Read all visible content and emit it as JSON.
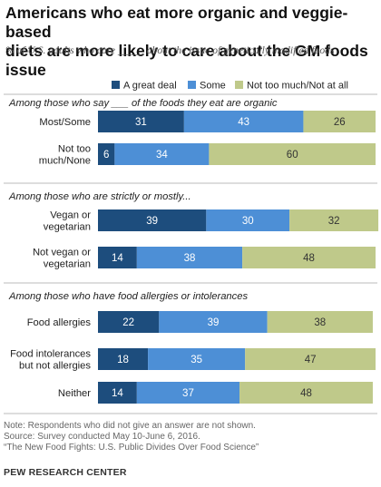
{
  "title_line1": "Americans who eat more organic and veggie-based",
  "title_line2": "diets are more likely to care about the GM foods issue",
  "subtitle": "% of U.S. adults who care _____ about the issue of genetically modified foods",
  "note_line1": "Note: Respondents who did not give an answer are not shown.",
  "note_line2": "Source: Survey conducted May 10-June 6, 2016.",
  "note_line3": "“The New Food Fights: U.S. Public Divides Over Food Science”",
  "source_org": "PEW RESEARCH CENTER",
  "colors": {
    "great_deal": "#1d4d7d",
    "some": "#4d8fd6",
    "not_too_much": "#bfc98a",
    "separator": "#bbbbbb"
  },
  "chart_data": {
    "type": "bar",
    "orientation": "horizontal",
    "stacked": true,
    "xlim": [
      0,
      100
    ],
    "legend_position": "top",
    "series": [
      {
        "name": "A great deal",
        "color": "#1d4d7d",
        "label_color": "#ffffff"
      },
      {
        "name": "Some",
        "color": "#4d8fd6",
        "label_color": "#ffffff"
      },
      {
        "name": "Not too much/Not at all",
        "color": "#bfc98a",
        "label_color": "#333333"
      }
    ],
    "groups": [
      {
        "heading": "Among those who say ___ of the foods they eat are organic",
        "rows": [
          {
            "label": [
              "Most/Some"
            ],
            "values": [
              31,
              43,
              26
            ]
          },
          {
            "label": [
              "Not too",
              "much/None"
            ],
            "values": [
              6,
              34,
              60
            ]
          }
        ]
      },
      {
        "heading": "Among those who are strictly or mostly...",
        "rows": [
          {
            "label": [
              "Vegan or",
              "vegetarian"
            ],
            "values": [
              39,
              30,
              32
            ]
          },
          {
            "label": [
              "Not vegan or",
              "vegetarian"
            ],
            "values": [
              14,
              38,
              48
            ]
          }
        ]
      },
      {
        "heading": "Among those who have food allergies or intolerances",
        "rows": [
          {
            "label": [
              "Food allergies"
            ],
            "values": [
              22,
              39,
              38
            ]
          },
          {
            "label": [
              "Food intolerances",
              "but not allergies"
            ],
            "values": [
              18,
              35,
              47
            ]
          },
          {
            "label": [
              "Neither"
            ],
            "values": [
              14,
              37,
              48
            ]
          }
        ]
      }
    ]
  }
}
